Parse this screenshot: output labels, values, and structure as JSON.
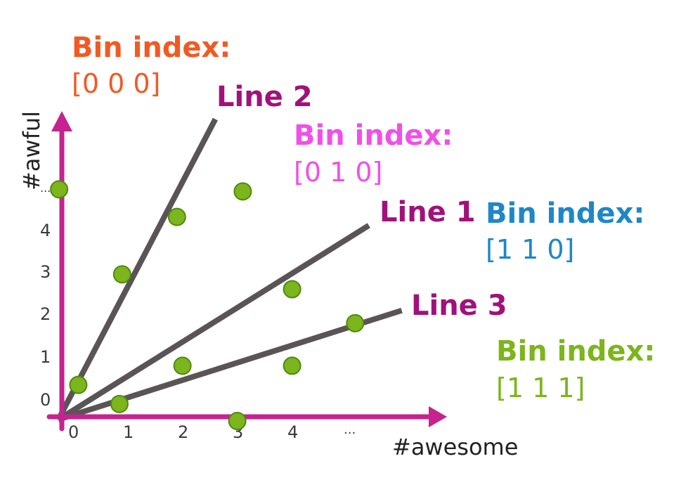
{
  "colors": {
    "axis": "#C42390",
    "split_line": "#5A5457",
    "point": "#7CB51C",
    "point_stroke": "#4E8A10",
    "line_label": "#A0127A"
  },
  "axes": {
    "x_title": "#awesome",
    "y_title": "#awful",
    "x_ticks": [
      "0",
      "1",
      "2",
      "3",
      "4",
      "..."
    ],
    "y_ticks": [
      "0",
      "1",
      "2",
      "3",
      "4",
      "..."
    ]
  },
  "bins": [
    {
      "header": "Bin index:",
      "value": "[0 0 0]",
      "color": "#F15A24"
    },
    {
      "header": "Bin index:",
      "value": "[0 1 0]",
      "color": "#F050E8"
    },
    {
      "header": "Bin index:",
      "value": "[1 1 0]",
      "color": "#1E87C8"
    },
    {
      "header": "Bin index:",
      "value": "[1 1 1]",
      "color": "#7CB51C"
    }
  ],
  "lines": [
    {
      "label": "Line 1",
      "end": [
        5.6,
        4.5
      ]
    },
    {
      "label": "Line 2",
      "end": [
        2.8,
        7.0
      ]
    },
    {
      "label": "Line 3",
      "end": [
        6.2,
        2.5
      ]
    }
  ],
  "points": [
    {
      "x": -0.05,
      "y": 5.35
    },
    {
      "x": 3.3,
      "y": 5.3
    },
    {
      "x": 2.1,
      "y": 4.7
    },
    {
      "x": 1.1,
      "y": 3.35
    },
    {
      "x": 4.2,
      "y": 3.0
    },
    {
      "x": 5.35,
      "y": 2.2
    },
    {
      "x": 2.2,
      "y": 1.2
    },
    {
      "x": 4.2,
      "y": 1.2
    },
    {
      "x": 0.3,
      "y": 0.75
    },
    {
      "x": 1.05,
      "y": 0.3
    },
    {
      "x": 3.2,
      "y": -0.1
    }
  ]
}
